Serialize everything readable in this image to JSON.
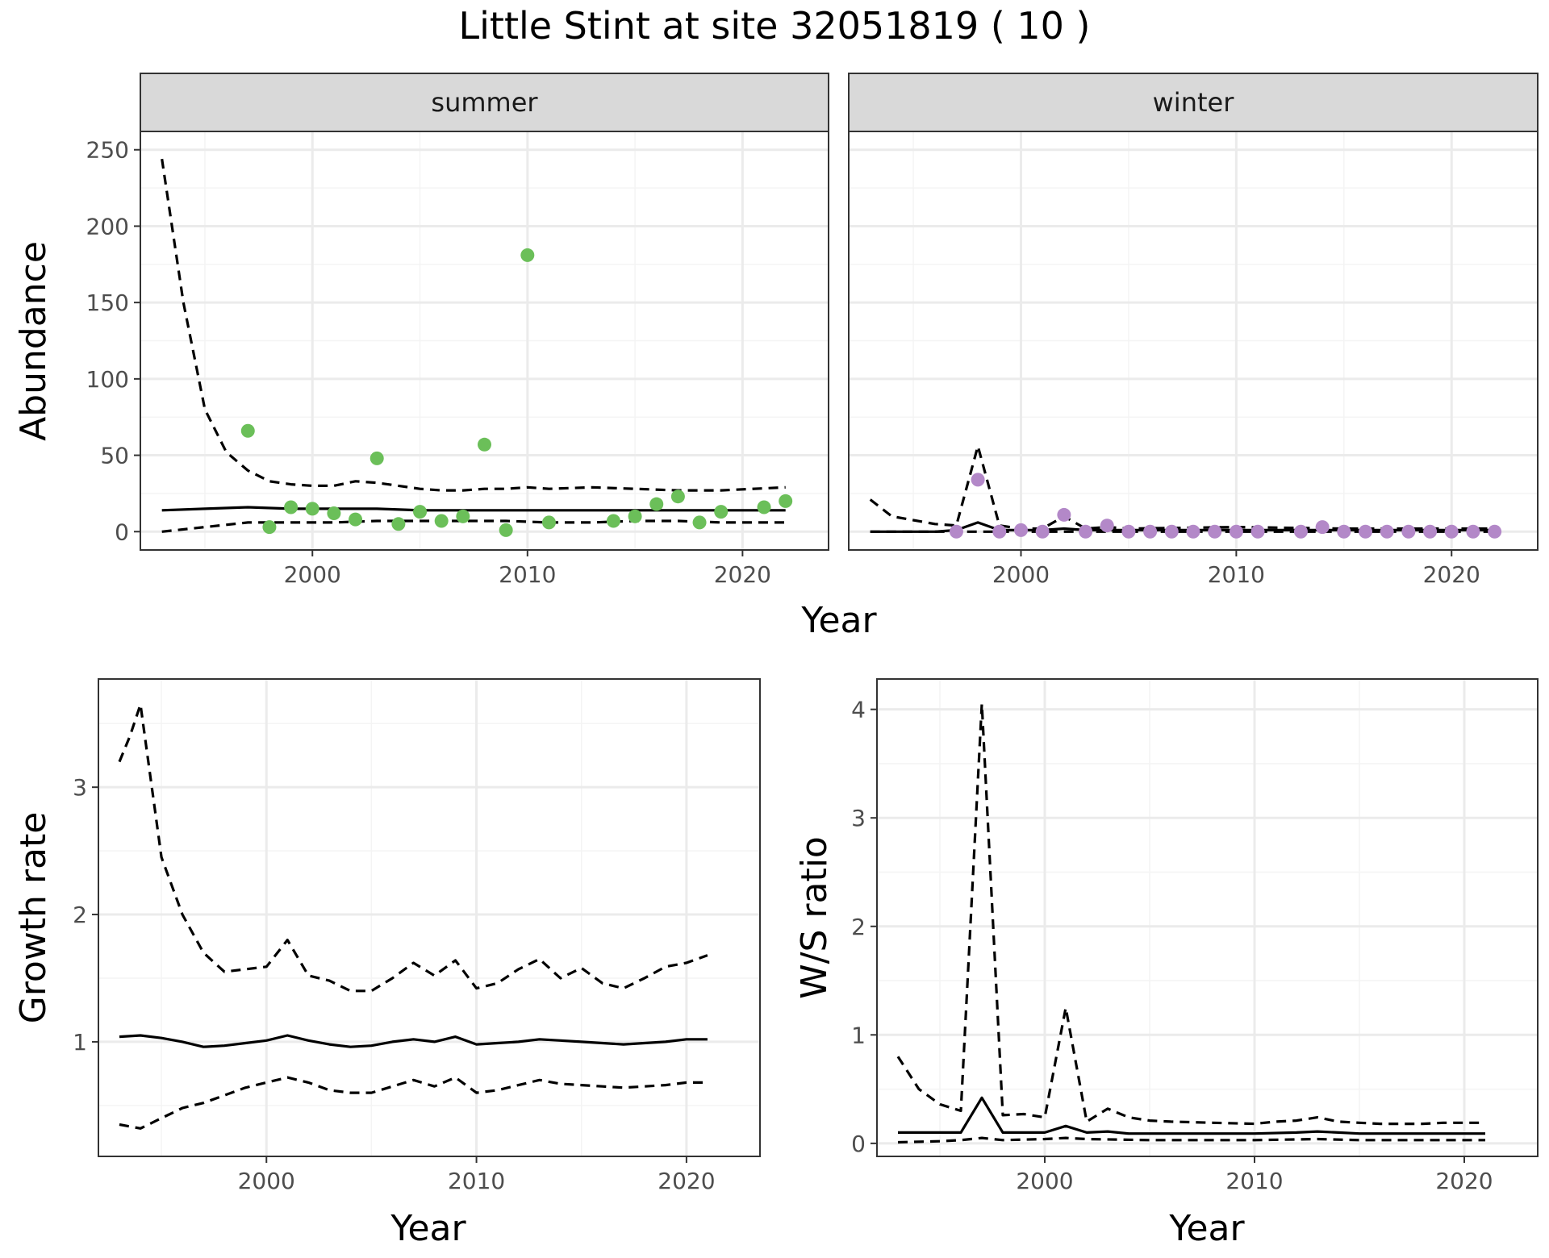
{
  "title": "Little Stint at site 32051819 ( 10 )",
  "colors": {
    "summer_points": "#6BBF59",
    "winter_points": "#B388C8",
    "line": "#000000",
    "grid_major": "#ebebeb",
    "grid_minor": "#f4f4f4",
    "strip_bg": "#d9d9d9",
    "panel_border": "#333333"
  },
  "chart_data": [
    {
      "id": "abundance",
      "type": "line",
      "ylabel": "Abundance",
      "xlabel": "Year",
      "xlim": [
        1992,
        2024
      ],
      "ylim": [
        -12,
        262
      ],
      "xticks": [
        2000,
        2010,
        2020
      ],
      "yticks": [
        0,
        50,
        100,
        150,
        200,
        250
      ],
      "facets": [
        {
          "label": "summer",
          "points": {
            "name": "observed",
            "x": [
              1997,
              1998,
              1999,
              2000,
              2001,
              2002,
              2003,
              2004,
              2005,
              2006,
              2007,
              2008,
              2009,
              2010,
              2011,
              2014,
              2015,
              2016,
              2017,
              2018,
              2019,
              2021,
              2022
            ],
            "y": [
              66,
              3,
              16,
              15,
              12,
              8,
              48,
              5,
              13,
              7,
              10,
              57,
              1,
              181,
              6,
              7,
              10,
              18,
              23,
              6,
              13,
              16,
              20
            ]
          },
          "series": [
            {
              "name": "estimate",
              "style": "solid",
              "x": [
                1993,
                1995,
                1997,
                1999,
                2001,
                2003,
                2005,
                2007,
                2009,
                2011,
                2013,
                2015,
                2017,
                2019,
                2022
              ],
              "y": [
                14,
                15,
                16,
                15,
                15,
                15,
                14,
                14,
                14,
                14,
                14,
                14,
                14,
                14,
                14
              ]
            },
            {
              "name": "upper",
              "style": "dashed",
              "x": [
                1993,
                1994,
                1995,
                1996,
                1997,
                1998,
                1999,
                2000,
                2001,
                2002,
                2003,
                2004,
                2005,
                2006,
                2007,
                2008,
                2009,
                2010,
                2011,
                2013,
                2015,
                2017,
                2019,
                2022
              ],
              "y": [
                244,
                150,
                80,
                52,
                40,
                33,
                31,
                30,
                30,
                33,
                32,
                30,
                28,
                27,
                27,
                28,
                28,
                29,
                28,
                29,
                28,
                27,
                27,
                29
              ]
            },
            {
              "name": "lower",
              "style": "dashed",
              "x": [
                1993,
                1995,
                1997,
                1999,
                2001,
                2003,
                2005,
                2007,
                2009,
                2011,
                2013,
                2015,
                2017,
                2019,
                2022
              ],
              "y": [
                0,
                3,
                6,
                6,
                6,
                7,
                7,
                7,
                7,
                6,
                6,
                7,
                7,
                6,
                6
              ]
            }
          ]
        },
        {
          "label": "winter",
          "points": {
            "name": "observed",
            "x": [
              1997,
              1998,
              1999,
              2000,
              2001,
              2002,
              2003,
              2004,
              2005,
              2006,
              2007,
              2008,
              2009,
              2010,
              2011,
              2013,
              2014,
              2015,
              2016,
              2017,
              2018,
              2019,
              2020,
              2021,
              2022
            ],
            "y": [
              0,
              34,
              0,
              1,
              0,
              11,
              0,
              4,
              0,
              0,
              0,
              0,
              0,
              0,
              0,
              0,
              3,
              0,
              0,
              0,
              0,
              0,
              0,
              0,
              0
            ]
          },
          "series": [
            {
              "name": "estimate",
              "style": "solid",
              "x": [
                1993,
                1996,
                1997,
                1998,
                1999,
                2001,
                2002,
                2003,
                2005,
                2010,
                2015,
                2020,
                2022
              ],
              "y": [
                0,
                0,
                1,
                6,
                1,
                1,
                2,
                1,
                1,
                1,
                1,
                1,
                1
              ]
            },
            {
              "name": "upper",
              "style": "dashed",
              "x": [
                1993,
                1994,
                1996,
                1997,
                1998,
                1999,
                2000,
                2001,
                2002,
                2003,
                2004,
                2005,
                2010,
                2015,
                2020,
                2022
              ],
              "y": [
                21,
                10,
                5,
                4,
                56,
                4,
                2,
                2,
                10,
                2,
                3,
                2,
                3,
                2,
                2,
                2
              ]
            },
            {
              "name": "lower",
              "style": "dashed",
              "x": [
                1993,
                2022
              ],
              "y": [
                0,
                0
              ]
            }
          ]
        }
      ]
    },
    {
      "id": "growth",
      "type": "line",
      "ylabel": "Growth rate",
      "xlabel": "Year",
      "xlim": [
        1992,
        2023.5
      ],
      "ylim": [
        0.1,
        3.85
      ],
      "xticks": [
        2000,
        2010,
        2020
      ],
      "yticks": [
        1,
        2,
        3
      ],
      "series": [
        {
          "name": "estimate",
          "style": "solid",
          "x": [
            1993,
            1994,
            1995,
            1996,
            1997,
            1998,
            1999,
            2000,
            2001,
            2002,
            2003,
            2004,
            2005,
            2006,
            2007,
            2008,
            2009,
            2010,
            2011,
            2012,
            2013,
            2014,
            2015,
            2016,
            2017,
            2018,
            2019,
            2020,
            2021
          ],
          "y": [
            1.04,
            1.05,
            1.03,
            1.0,
            0.96,
            0.97,
            0.99,
            1.01,
            1.05,
            1.01,
            0.98,
            0.96,
            0.97,
            1.0,
            1.02,
            1.0,
            1.04,
            0.98,
            0.99,
            1.0,
            1.02,
            1.01,
            1.0,
            0.99,
            0.98,
            0.99,
            1.0,
            1.02,
            1.02
          ]
        },
        {
          "name": "upper",
          "style": "dashed",
          "x": [
            1993,
            1993.5,
            1994,
            1995,
            1996,
            1997,
            1998,
            1999,
            2000,
            2001,
            2002,
            2003,
            2004,
            2005,
            2006,
            2007,
            2008,
            2009,
            2010,
            2011,
            2012,
            2013,
            2014,
            2015,
            2016,
            2017,
            2018,
            2019,
            2020,
            2021
          ],
          "y": [
            3.2,
            3.4,
            3.65,
            2.45,
            2.0,
            1.7,
            1.55,
            1.57,
            1.59,
            1.8,
            1.52,
            1.48,
            1.4,
            1.4,
            1.5,
            1.62,
            1.52,
            1.64,
            1.42,
            1.46,
            1.57,
            1.65,
            1.5,
            1.58,
            1.46,
            1.42,
            1.5,
            1.59,
            1.62,
            1.68
          ]
        },
        {
          "name": "lower",
          "style": "dashed",
          "x": [
            1993,
            1994,
            1995,
            1996,
            1997,
            1998,
            1999,
            2000,
            2001,
            2002,
            2003,
            2004,
            2005,
            2006,
            2007,
            2008,
            2009,
            2010,
            2011,
            2012,
            2013,
            2014,
            2015,
            2016,
            2017,
            2018,
            2019,
            2020,
            2021
          ],
          "y": [
            0.35,
            0.32,
            0.4,
            0.48,
            0.52,
            0.58,
            0.64,
            0.68,
            0.72,
            0.68,
            0.62,
            0.6,
            0.6,
            0.65,
            0.7,
            0.65,
            0.72,
            0.6,
            0.62,
            0.66,
            0.7,
            0.67,
            0.66,
            0.65,
            0.64,
            0.65,
            0.66,
            0.68,
            0.68
          ]
        }
      ]
    },
    {
      "id": "ratio",
      "type": "line",
      "ylabel": "W/S ratio",
      "xlabel": "Year",
      "xlim": [
        1992,
        2023.5
      ],
      "ylim": [
        -0.12,
        4.28
      ],
      "xticks": [
        2000,
        2010,
        2020
      ],
      "yticks": [
        0,
        1,
        2,
        3,
        4
      ],
      "series": [
        {
          "name": "estimate",
          "style": "solid",
          "x": [
            1993,
            1994,
            1995,
            1996,
            1997,
            1998,
            1999,
            2000,
            2001,
            2002,
            2003,
            2004,
            2005,
            2010,
            2012,
            2013,
            2014,
            2015,
            2020,
            2021
          ],
          "y": [
            0.1,
            0.1,
            0.1,
            0.1,
            0.42,
            0.1,
            0.1,
            0.1,
            0.16,
            0.1,
            0.11,
            0.09,
            0.09,
            0.09,
            0.1,
            0.11,
            0.1,
            0.09,
            0.09,
            0.09
          ]
        },
        {
          "name": "upper",
          "style": "dashed",
          "x": [
            1993,
            1994,
            1995,
            1996,
            1997,
            1998,
            1999,
            2000,
            2001,
            2002,
            2003,
            2004,
            2005,
            2006,
            2008,
            2010,
            2011,
            2012,
            2013,
            2014,
            2015,
            2016,
            2017,
            2018,
            2019,
            2020,
            2021
          ],
          "y": [
            0.8,
            0.5,
            0.36,
            0.3,
            4.05,
            0.26,
            0.27,
            0.24,
            1.25,
            0.2,
            0.32,
            0.24,
            0.21,
            0.2,
            0.19,
            0.18,
            0.2,
            0.21,
            0.24,
            0.2,
            0.19,
            0.18,
            0.18,
            0.18,
            0.19,
            0.19,
            0.19
          ]
        },
        {
          "name": "lower",
          "style": "dashed",
          "x": [
            1993,
            1995,
            1996,
            1997,
            1998,
            2000,
            2001,
            2002,
            2005,
            2010,
            2013,
            2015,
            2020,
            2021
          ],
          "y": [
            0.01,
            0.02,
            0.03,
            0.05,
            0.03,
            0.04,
            0.05,
            0.04,
            0.03,
            0.03,
            0.04,
            0.03,
            0.03,
            0.03
          ]
        }
      ]
    }
  ]
}
